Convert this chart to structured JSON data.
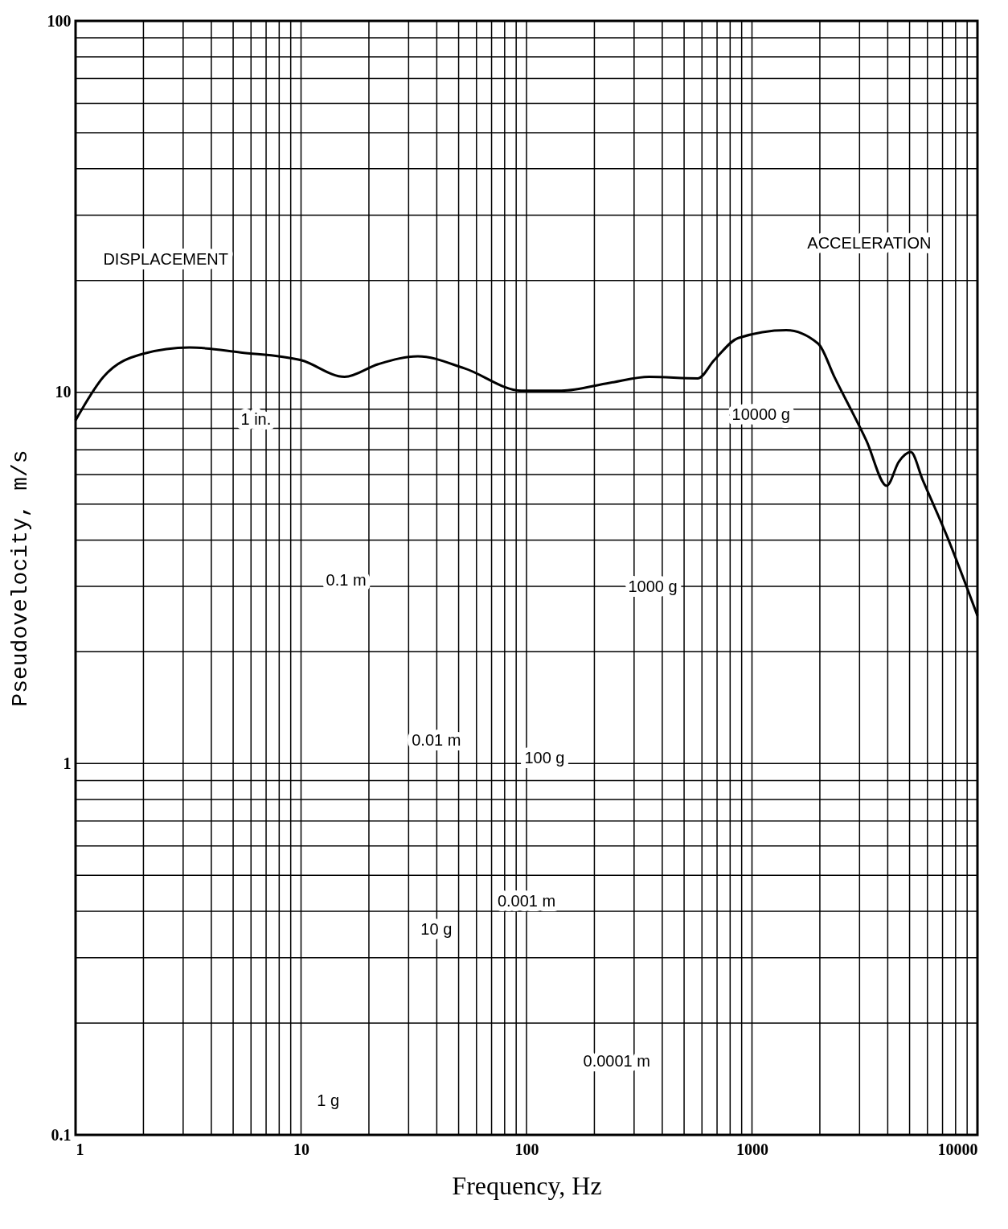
{
  "chart_data": {
    "type": "line",
    "xlabel": "Frequency, Hz",
    "ylabel": "Pseudovelocity, m/s",
    "log": "xy",
    "grid": true,
    "marker": "none",
    "line_style": "solid",
    "xlim": [
      1,
      10000
    ],
    "xticks": [
      1,
      10,
      100,
      1000,
      10000
    ],
    "ylim": [
      0.1,
      100
    ],
    "yticks": [
      0.1,
      1,
      10,
      100
    ],
    "x": [
      1.0,
      1.33,
      2.0,
      3.2,
      5.4,
      10,
      15.6,
      22,
      33,
      53,
      95,
      143,
      234,
      350,
      576,
      680,
      870,
      1420,
      1970,
      2320,
      3220,
      3960,
      4480,
      5060,
      5720,
      7320,
      10000
    ],
    "series": [
      {
        "color": "#000000",
        "values": [
          8.4,
          11.0,
          12.7,
          13.2,
          12.8,
          12.2,
          11.0,
          11.9,
          12.5,
          11.6,
          10.1,
          10.1,
          10.6,
          11.0,
          10.9,
          12.2,
          14.0,
          14.7,
          13.5,
          11.0,
          7.4,
          5.6,
          6.5,
          6.9,
          5.8,
          4.1,
          2.5
        ]
      }
    ],
    "annotations": [
      "DISPLACEMENT",
      "1 in.",
      "0.1 m",
      "0.01 m",
      "0.001 m",
      "0.0001 m",
      "1 g",
      "10 g",
      "100 g",
      "1000 g",
      "10000 g",
      "ACCELERATION"
    ]
  }
}
